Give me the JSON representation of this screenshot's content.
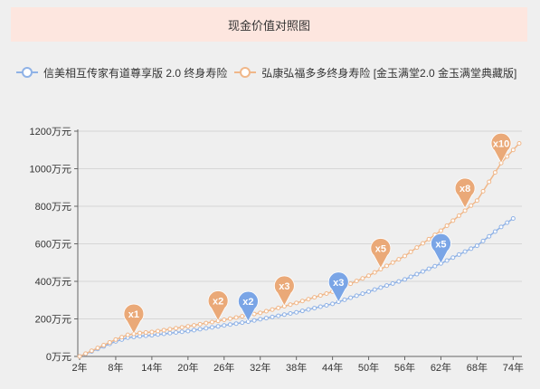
{
  "title": "现金价值对照图",
  "colors": {
    "series_a": "#8fb2e6",
    "series_b": "#f0b789",
    "marker_a": "#7aa5e6",
    "marker_b": "#eaa978"
  },
  "chart_data": {
    "type": "line",
    "title": "现金价值对照图",
    "xlabel": "",
    "ylabel": "",
    "xlim": [
      2,
      75
    ],
    "ylim": [
      0,
      1200
    ],
    "x_ticks": [
      "2年",
      "8年",
      "14年",
      "20年",
      "26年",
      "32年",
      "38年",
      "44年",
      "50年",
      "56年",
      "62年",
      "68年",
      "74年"
    ],
    "y_ticks": [
      "0万元",
      "200万元",
      "400万元",
      "600万元",
      "800万元",
      "1000万元",
      "1200万元"
    ],
    "grid": true,
    "legend_position": "top-left",
    "series": [
      {
        "name": "信美相互传家有道尊享版 2.0 终身寿险",
        "points": [
          [
            2,
            0
          ],
          [
            5,
            40
          ],
          [
            8,
            80
          ],
          [
            10,
            100
          ],
          [
            12,
            108
          ],
          [
            14,
            113
          ],
          [
            20,
            135
          ],
          [
            26,
            165
          ],
          [
            30,
            185
          ],
          [
            32,
            198
          ],
          [
            38,
            235
          ],
          [
            44,
            280
          ],
          [
            50,
            345
          ],
          [
            56,
            410
          ],
          [
            62,
            495
          ],
          [
            68,
            590
          ],
          [
            72,
            690
          ],
          [
            74,
            735
          ]
        ]
      },
      {
        "name": "弘康弘福多多终身寿险 [金玉满堂2.0 金玉满堂典藏版]",
        "points": [
          [
            2,
            0
          ],
          [
            5,
            45
          ],
          [
            8,
            90
          ],
          [
            10,
            115
          ],
          [
            12,
            125
          ],
          [
            14,
            130
          ],
          [
            20,
            160
          ],
          [
            26,
            195
          ],
          [
            30,
            220
          ],
          [
            32,
            232
          ],
          [
            38,
            285
          ],
          [
            44,
            345
          ],
          [
            50,
            430
          ],
          [
            56,
            535
          ],
          [
            62,
            670
          ],
          [
            68,
            830
          ],
          [
            72,
            1030
          ],
          [
            75,
            1135
          ]
        ]
      }
    ],
    "markers": [
      {
        "series": 1,
        "label": "x1",
        "x": 11,
        "y": 120
      },
      {
        "series": 1,
        "label": "x2",
        "x": 25,
        "y": 190
      },
      {
        "series": 0,
        "label": "x2",
        "x": 30,
        "y": 187
      },
      {
        "series": 1,
        "label": "x3",
        "x": 36,
        "y": 270
      },
      {
        "series": 0,
        "label": "x3",
        "x": 45,
        "y": 290
      },
      {
        "series": 1,
        "label": "x5",
        "x": 52,
        "y": 470
      },
      {
        "series": 0,
        "label": "x5",
        "x": 62,
        "y": 495
      },
      {
        "series": 1,
        "label": "x8",
        "x": 66,
        "y": 790
      },
      {
        "series": 1,
        "label": "x10",
        "x": 72,
        "y": 1030
      }
    ]
  }
}
